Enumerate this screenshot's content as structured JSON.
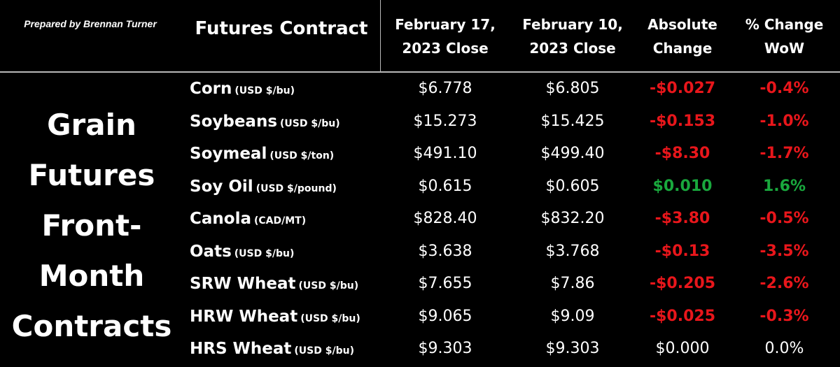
{
  "header": {
    "credit": "Prepared by Brennan Turner",
    "contract_label": "Futures Contract",
    "col_feb17": [
      "February 17,",
      "2023 Close"
    ],
    "col_feb10": [
      "February 10,",
      "2023 Close"
    ],
    "col_abs": [
      "Absolute",
      "Change"
    ],
    "col_pct": [
      "% Change",
      "WoW"
    ]
  },
  "section_title": [
    "Grain",
    "Futures",
    "Front-",
    "Month",
    "Contracts"
  ],
  "colors": {
    "negative": "#e8161b",
    "positive": "#19a83d",
    "neutral": "#ffffff"
  },
  "rows": [
    {
      "name": "Corn",
      "unit": "(USD $/bu)",
      "feb17": "$6.778",
      "feb10": "$6.805",
      "abs": "-$0.027",
      "pct": "-0.4%",
      "dir": "negative"
    },
    {
      "name": "Soybeans",
      "unit": "(USD $/bu)",
      "feb17": "$15.273",
      "feb10": "$15.425",
      "abs": "-$0.153",
      "pct": "-1.0%",
      "dir": "negative"
    },
    {
      "name": "Soymeal",
      "unit": "(USD $/ton)",
      "feb17": "$491.10",
      "feb10": "$499.40",
      "abs": "-$8.30",
      "pct": "-1.7%",
      "dir": "negative"
    },
    {
      "name": "Soy Oil",
      "unit": "(USD $/pound)",
      "feb17": "$0.615",
      "feb10": "$0.605",
      "abs": "$0.010",
      "pct": "1.6%",
      "dir": "positive"
    },
    {
      "name": "Canola",
      "unit": "(CAD/MT)",
      "feb17": "$828.40",
      "feb10": "$832.20",
      "abs": "-$3.80",
      "pct": "-0.5%",
      "dir": "negative"
    },
    {
      "name": "Oats",
      "unit": "(USD $/bu)",
      "feb17": "$3.638",
      "feb10": "$3.768",
      "abs": "-$0.13",
      "pct": "-3.5%",
      "dir": "negative"
    },
    {
      "name": "SRW Wheat",
      "unit": "(USD $/bu)",
      "feb17": "$7.655",
      "feb10": "$7.86",
      "abs": "-$0.205",
      "pct": "-2.6%",
      "dir": "negative"
    },
    {
      "name": "HRW Wheat",
      "unit": "(USD $/bu)",
      "feb17": "$9.065",
      "feb10": "$9.09",
      "abs": "-$0.025",
      "pct": "-0.3%",
      "dir": "negative"
    },
    {
      "name": "HRS Wheat",
      "unit": "(USD $/bu)",
      "feb17": "$9.303",
      "feb10": "$9.303",
      "abs": "$0.000",
      "pct": "0.0%",
      "dir": "neutral"
    }
  ]
}
